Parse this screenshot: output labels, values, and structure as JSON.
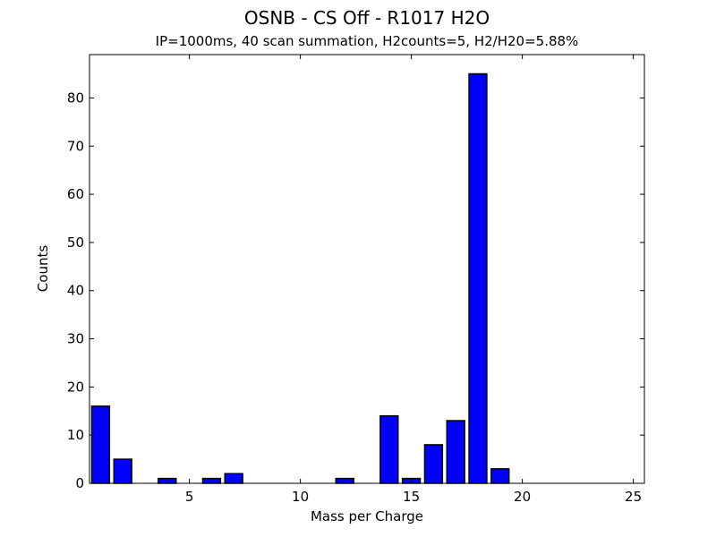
{
  "chart_data": {
    "type": "bar",
    "title": "OSNB - CS Off - R1017 H2O",
    "subtitle": "IP=1000ms, 40 scan summation, H2counts=5, H2/H20=5.88%",
    "xlabel": "Mass per Charge",
    "ylabel": "Counts",
    "xlim": [
      0.5,
      25.5
    ],
    "ylim": [
      0,
      89
    ],
    "xticks": [
      5,
      10,
      15,
      20,
      25
    ],
    "yticks": [
      0,
      10,
      20,
      30,
      40,
      50,
      60,
      70,
      80
    ],
    "bar_color": "#0000ff",
    "categories": [
      1,
      2,
      3,
      4,
      5,
      6,
      7,
      8,
      9,
      10,
      11,
      12,
      13,
      14,
      15,
      16,
      17,
      18,
      19,
      20,
      21,
      22
    ],
    "values": [
      16,
      5,
      0,
      1,
      0,
      1,
      2,
      0,
      0,
      0,
      0,
      1,
      0,
      14,
      1,
      8,
      13,
      85,
      3,
      0,
      0,
      0
    ],
    "grid": false,
    "legend": null
  }
}
